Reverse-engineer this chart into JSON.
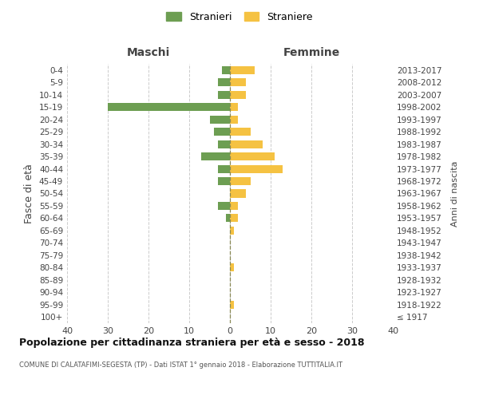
{
  "age_groups": [
    "100+",
    "95-99",
    "90-94",
    "85-89",
    "80-84",
    "75-79",
    "70-74",
    "65-69",
    "60-64",
    "55-59",
    "50-54",
    "45-49",
    "40-44",
    "35-39",
    "30-34",
    "25-29",
    "20-24",
    "15-19",
    "10-14",
    "5-9",
    "0-4"
  ],
  "birth_years": [
    "≤ 1917",
    "1918-1922",
    "1923-1927",
    "1928-1932",
    "1933-1937",
    "1938-1942",
    "1943-1947",
    "1948-1952",
    "1953-1957",
    "1958-1962",
    "1963-1967",
    "1968-1972",
    "1973-1977",
    "1978-1982",
    "1983-1987",
    "1988-1992",
    "1993-1997",
    "1998-2002",
    "2003-2007",
    "2008-2012",
    "2013-2017"
  ],
  "maschi": [
    0,
    0,
    0,
    0,
    0,
    0,
    0,
    0,
    1,
    3,
    0,
    3,
    3,
    7,
    3,
    4,
    5,
    30,
    3,
    3,
    2
  ],
  "femmine": [
    0,
    1,
    0,
    0,
    1,
    0,
    0,
    1,
    2,
    2,
    4,
    5,
    13,
    11,
    8,
    5,
    2,
    2,
    4,
    4,
    6
  ],
  "maschi_color": "#6d9e52",
  "femmine_color": "#f5c242",
  "grid_color": "#cccccc",
  "background_color": "#ffffff",
  "title": "Popolazione per cittadinanza straniera per età e sesso - 2018",
  "subtitle": "COMUNE DI CALATAFIMI-SEGESTA (TP) - Dati ISTAT 1° gennaio 2018 - Elaborazione TUTTITALIA.IT",
  "ylabel_left": "Fasce di età",
  "ylabel_right": "Anni di nascita",
  "xlabel_maschi": "Maschi",
  "xlabel_femmine": "Femmine",
  "legend_maschi": "Stranieri",
  "legend_femmine": "Straniere",
  "xlim": 40
}
